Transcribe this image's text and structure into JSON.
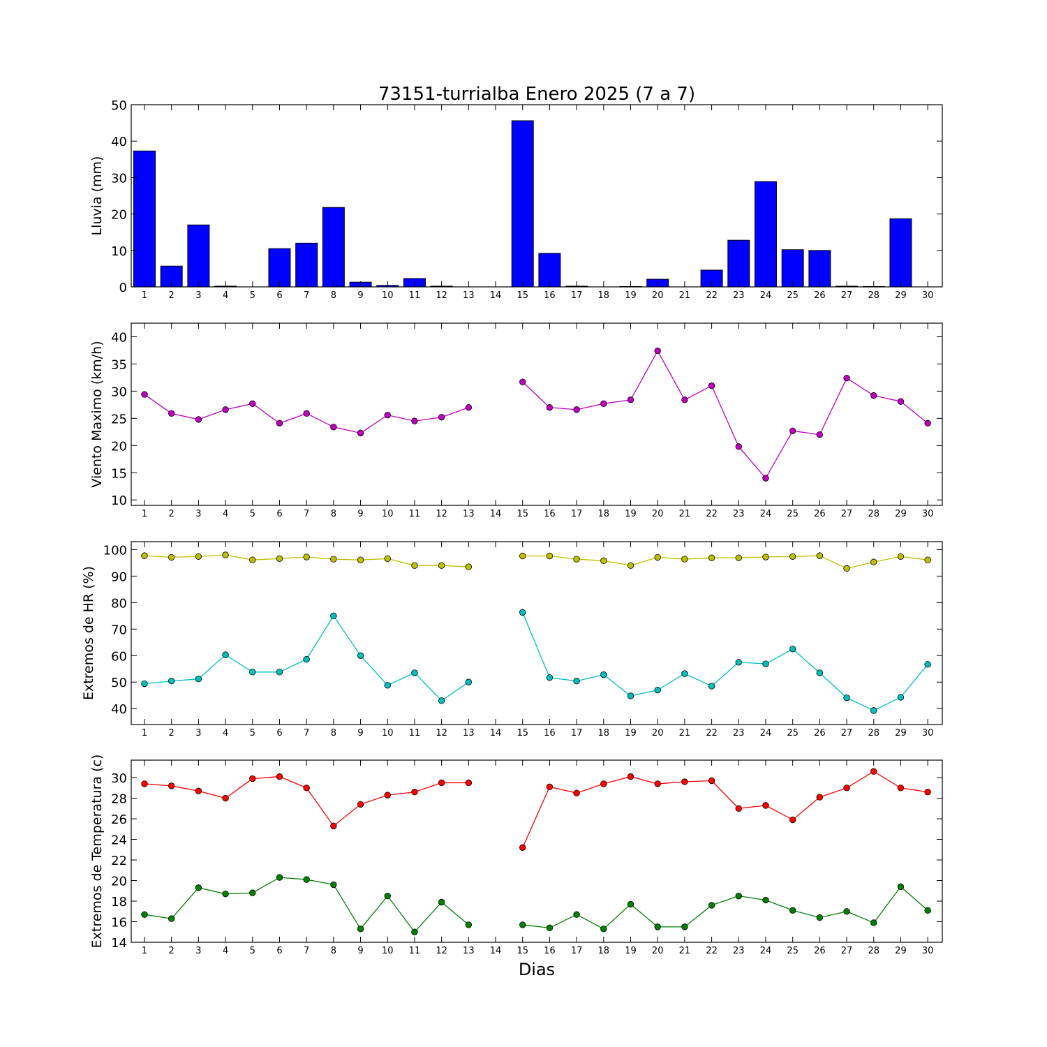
{
  "chart_data": {
    "title": "73151-turrialba Enero 2025  (7 a 7)",
    "xlabel": "Dias",
    "days": [
      "1",
      "2",
      "3",
      "4",
      "5",
      "6",
      "7",
      "8",
      "9",
      "10",
      "11",
      "12",
      "13",
      "14",
      "15",
      "16",
      "17",
      "18",
      "19",
      "20",
      "21",
      "22",
      "23",
      "24",
      "25",
      "26",
      "27",
      "28",
      "29",
      "30"
    ],
    "panels": [
      {
        "type": "bar",
        "ylabel": "Lluvia (mm)",
        "ylim": [
          0,
          50
        ],
        "yticks": [
          0,
          10,
          20,
          30,
          40,
          50
        ],
        "series": [
          {
            "color": "#0000ff",
            "values": [
              37.3,
              5.7,
              17.0,
              0.2,
              0.0,
              10.5,
              12.0,
              21.8,
              1.3,
              0.4,
              2.3,
              0.2,
              0.0,
              0.0,
              45.6,
              9.2,
              0.2,
              0.0,
              0.1,
              2.1,
              0.0,
              4.6,
              12.8,
              28.9,
              10.2,
              10.0,
              0.2,
              0.1,
              18.7,
              0.0
            ]
          }
        ]
      },
      {
        "type": "line",
        "ylabel": "Viento Maximo (km/h)",
        "ylim": [
          9,
          42.5
        ],
        "yticks": [
          10,
          15,
          20,
          25,
          30,
          35,
          40
        ],
        "series": [
          {
            "color": "#bf00bf",
            "values": [
              29.4,
              25.9,
              24.8,
              26.6,
              27.7,
              24.1,
              25.9,
              23.4,
              22.3,
              25.6,
              24.5,
              25.2,
              27.0,
              null,
              31.7,
              27.0,
              26.6,
              27.7,
              28.4,
              37.4,
              28.4,
              31.0,
              19.8,
              14.0,
              22.7,
              22.0,
              32.4,
              29.2,
              28.1,
              24.1
            ]
          }
        ]
      },
      {
        "type": "line",
        "ylabel": "Extremos de HR (%)",
        "ylim": [
          34,
          103
        ],
        "yticks": [
          40,
          50,
          60,
          70,
          80,
          90,
          100
        ],
        "series": [
          {
            "color": "#bfbf00",
            "values": [
              97.7,
              97.1,
              97.4,
              98.0,
              96.1,
              96.6,
              97.2,
              96.4,
              96.1,
              96.6,
              94.0,
              94.0,
              93.5,
              null,
              97.6,
              97.6,
              96.4,
              95.8,
              94.0,
              97.1,
              96.4,
              96.9,
              96.9,
              97.2,
              97.4,
              97.7,
              92.9,
              95.3,
              97.4,
              96.1
            ]
          },
          {
            "color": "#00bfbf",
            "values": [
              49.4,
              50.4,
              51.2,
              60.3,
              53.8,
              53.8,
              58.6,
              75.0,
              60.0,
              48.8,
              53.5,
              43.0,
              50.0,
              null,
              76.3,
              51.7,
              50.4,
              52.8,
              44.8,
              47.0,
              53.2,
              48.5,
              57.5,
              56.9,
              62.5,
              53.5,
              44.1,
              39.3,
              44.3,
              56.7
            ]
          }
        ]
      },
      {
        "type": "line",
        "ylabel": "Extremos de Temperatura (c)",
        "ylim": [
          14,
          31.7
        ],
        "yticks": [
          14,
          16,
          18,
          20,
          22,
          24,
          26,
          28,
          30
        ],
        "series": [
          {
            "color": "#ff0000",
            "values": [
              29.4,
              29.2,
              28.7,
              28.0,
              29.9,
              30.1,
              29.0,
              25.3,
              27.4,
              28.3,
              28.6,
              29.5,
              29.5,
              null,
              23.2,
              29.1,
              28.5,
              29.4,
              30.1,
              29.4,
              29.6,
              29.7,
              27.0,
              27.3,
              25.9,
              28.1,
              29.0,
              30.6,
              29.0,
              28.6
            ]
          },
          {
            "color": "#008000",
            "values": [
              16.7,
              16.3,
              19.3,
              18.7,
              18.8,
              20.3,
              20.1,
              19.6,
              15.3,
              18.5,
              15.0,
              17.9,
              15.7,
              null,
              15.7,
              15.4,
              16.7,
              15.3,
              17.7,
              15.5,
              15.5,
              17.6,
              18.5,
              18.1,
              17.1,
              16.4,
              17.0,
              15.9,
              19.4,
              17.1
            ]
          }
        ]
      }
    ]
  }
}
